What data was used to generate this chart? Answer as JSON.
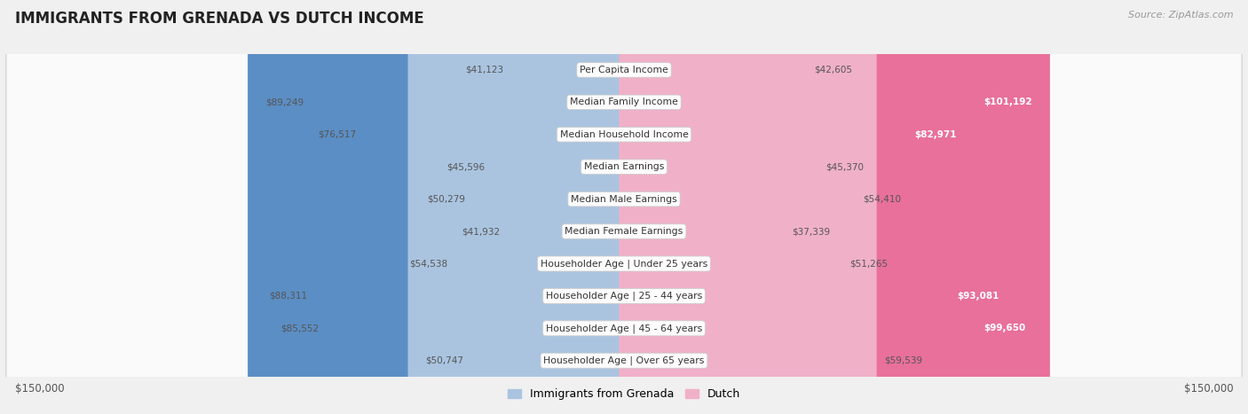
{
  "title": "IMMIGRANTS FROM GRENADA VS DUTCH INCOME",
  "source": "Source: ZipAtlas.com",
  "categories": [
    "Per Capita Income",
    "Median Family Income",
    "Median Household Income",
    "Median Earnings",
    "Median Male Earnings",
    "Median Female Earnings",
    "Householder Age | Under 25 years",
    "Householder Age | 25 - 44 years",
    "Householder Age | 45 - 64 years",
    "Householder Age | Over 65 years"
  ],
  "grenada_values": [
    41123,
    89249,
    76517,
    45596,
    50279,
    41932,
    54538,
    88311,
    85552,
    50747
  ],
  "dutch_values": [
    42605,
    101192,
    82971,
    45370,
    54410,
    37339,
    51265,
    93081,
    99650,
    59539
  ],
  "grenada_labels": [
    "$41,123",
    "$89,249",
    "$76,517",
    "$45,596",
    "$50,279",
    "$41,932",
    "$54,538",
    "$88,311",
    "$85,552",
    "$50,747"
  ],
  "dutch_labels": [
    "$42,605",
    "$101,192",
    "$82,971",
    "$45,370",
    "$54,410",
    "$37,339",
    "$51,265",
    "$93,081",
    "$99,650",
    "$59,539"
  ],
  "max_value": 150000,
  "grenada_color_strong": "#5b8ec4",
  "grenada_color_light": "#aac4e0",
  "dutch_color_strong": "#e8709a",
  "dutch_color_light": "#f0b0c8",
  "background_color": "#f0f0f0",
  "row_background": "#fafafa",
  "row_border": "#d8d8d8",
  "axis_label_left": "$150,000",
  "axis_label_right": "$150,000",
  "legend_grenada": "Immigrants from Grenada",
  "legend_dutch": "Dutch",
  "strong_threshold": 70000
}
